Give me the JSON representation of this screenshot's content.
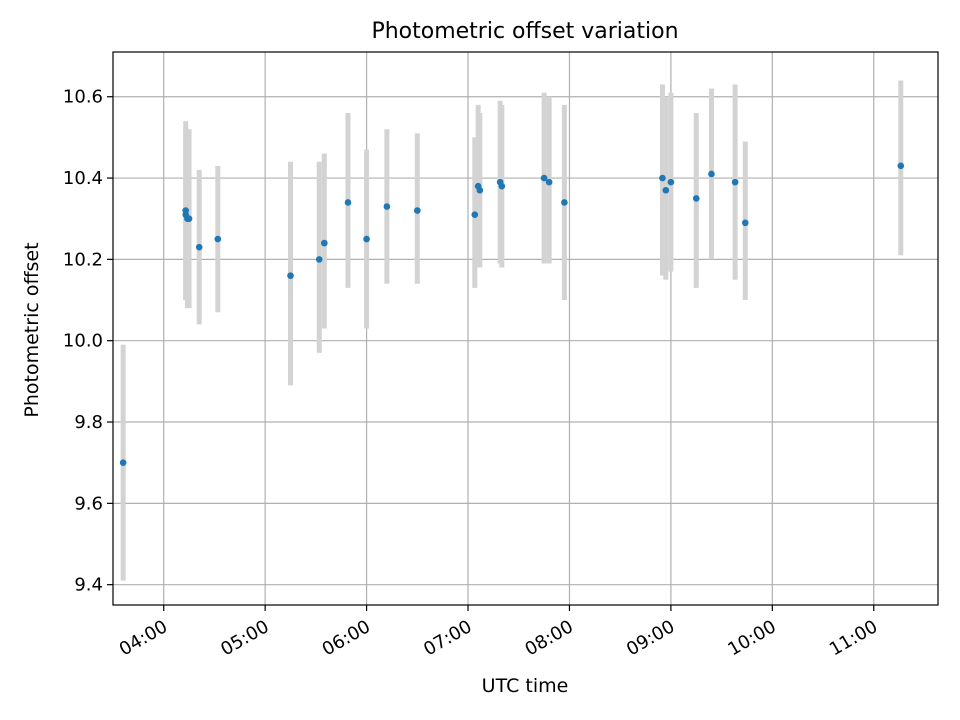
{
  "chart_data": {
    "type": "scatter",
    "title": "Photometric offset variation",
    "xlabel": "UTC time",
    "ylabel": "Photometric offset",
    "x_ticks": [
      "04:00",
      "05:00",
      "06:00",
      "07:00",
      "08:00",
      "09:00",
      "10:00",
      "11:00"
    ],
    "y_ticks": [
      "9.4",
      "9.6",
      "9.8",
      "10.0",
      "10.2",
      "10.4",
      "10.6"
    ],
    "xlim": [
      "03:30",
      "11:38"
    ],
    "ylim": [
      9.35,
      10.71
    ],
    "grid": true,
    "colors": {
      "point": "#1f77b4",
      "errorbar": "#d3d3d3",
      "grid": "#b0b0b0"
    },
    "points": [
      {
        "x": "03:36",
        "y": 9.7,
        "err_low": 9.41,
        "err_high": 9.99
      },
      {
        "x": "04:13",
        "y": 10.31,
        "err_low": 10.1,
        "err_high": 10.52
      },
      {
        "x": "04:13",
        "y": 10.32,
        "err_low": 10.1,
        "err_high": 10.54
      },
      {
        "x": "04:14",
        "y": 10.3,
        "err_low": 10.08,
        "err_high": 10.52
      },
      {
        "x": "04:15",
        "y": 10.3,
        "err_low": 10.08,
        "err_high": 10.52
      },
      {
        "x": "04:21",
        "y": 10.23,
        "err_low": 10.04,
        "err_high": 10.42
      },
      {
        "x": "04:32",
        "y": 10.25,
        "err_low": 10.07,
        "err_high": 10.43
      },
      {
        "x": "05:15",
        "y": 10.16,
        "err_low": 9.89,
        "err_high": 10.44
      },
      {
        "x": "05:32",
        "y": 10.2,
        "err_low": 9.97,
        "err_high": 10.44
      },
      {
        "x": "05:35",
        "y": 10.24,
        "err_low": 10.03,
        "err_high": 10.46
      },
      {
        "x": "05:49",
        "y": 10.34,
        "err_low": 10.13,
        "err_high": 10.56
      },
      {
        "x": "06:00",
        "y": 10.25,
        "err_low": 10.03,
        "err_high": 10.47
      },
      {
        "x": "06:12",
        "y": 10.33,
        "err_low": 10.14,
        "err_high": 10.52
      },
      {
        "x": "06:30",
        "y": 10.32,
        "err_low": 10.14,
        "err_high": 10.51
      },
      {
        "x": "07:04",
        "y": 10.31,
        "err_low": 10.13,
        "err_high": 10.5
      },
      {
        "x": "07:06",
        "y": 10.38,
        "err_low": 10.18,
        "err_high": 10.58
      },
      {
        "x": "07:07",
        "y": 10.37,
        "err_low": 10.18,
        "err_high": 10.56
      },
      {
        "x": "07:19",
        "y": 10.39,
        "err_low": 10.19,
        "err_high": 10.59
      },
      {
        "x": "07:20",
        "y": 10.38,
        "err_low": 10.18,
        "err_high": 10.58
      },
      {
        "x": "07:45",
        "y": 10.4,
        "err_low": 10.19,
        "err_high": 10.61
      },
      {
        "x": "07:48",
        "y": 10.39,
        "err_low": 10.19,
        "err_high": 10.6
      },
      {
        "x": "07:57",
        "y": 10.34,
        "err_low": 10.1,
        "err_high": 10.58
      },
      {
        "x": "08:55",
        "y": 10.4,
        "err_low": 10.16,
        "err_high": 10.63
      },
      {
        "x": "08:57",
        "y": 10.37,
        "err_low": 10.15,
        "err_high": 10.6
      },
      {
        "x": "09:00",
        "y": 10.39,
        "err_low": 10.17,
        "err_high": 10.61
      },
      {
        "x": "09:15",
        "y": 10.35,
        "err_low": 10.13,
        "err_high": 10.56
      },
      {
        "x": "09:24",
        "y": 10.41,
        "err_low": 10.2,
        "err_high": 10.62
      },
      {
        "x": "09:38",
        "y": 10.39,
        "err_low": 10.15,
        "err_high": 10.63
      },
      {
        "x": "09:44",
        "y": 10.29,
        "err_low": 10.1,
        "err_high": 10.49
      },
      {
        "x": "11:16",
        "y": 10.43,
        "err_low": 10.21,
        "err_high": 10.64
      }
    ]
  }
}
